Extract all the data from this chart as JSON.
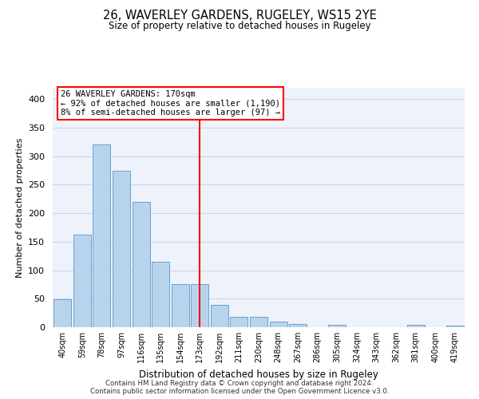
{
  "title": "26, WAVERLEY GARDENS, RUGELEY, WS15 2YE",
  "subtitle": "Size of property relative to detached houses in Rugeley",
  "xlabel": "Distribution of detached houses by size in Rugeley",
  "ylabel": "Number of detached properties",
  "bin_labels": [
    "40sqm",
    "59sqm",
    "78sqm",
    "97sqm",
    "116sqm",
    "135sqm",
    "154sqm",
    "173sqm",
    "192sqm",
    "211sqm",
    "230sqm",
    "248sqm",
    "267sqm",
    "286sqm",
    "305sqm",
    "324sqm",
    "343sqm",
    "362sqm",
    "381sqm",
    "400sqm",
    "419sqm"
  ],
  "bar_heights": [
    49,
    163,
    320,
    275,
    220,
    115,
    75,
    75,
    39,
    18,
    18,
    10,
    6,
    0,
    4,
    0,
    0,
    0,
    4,
    0,
    3
  ],
  "bar_color": "#b8d4ec",
  "bar_edge_color": "#6aa0cc",
  "ylim": [
    0,
    420
  ],
  "yticks": [
    0,
    50,
    100,
    150,
    200,
    250,
    300,
    350,
    400
  ],
  "red_line_index": 7,
  "annotation_title": "26 WAVERLEY GARDENS: 170sqm",
  "annotation_line1": "← 92% of detached houses are smaller (1,190)",
  "annotation_line2": "8% of semi-detached houses are larger (97) →",
  "footer_line1": "Contains HM Land Registry data © Crown copyright and database right 2024.",
  "footer_line2": "Contains public sector information licensed under the Open Government Licence v3.0.",
  "bg_color": "#eef2fb",
  "grid_color": "#cdd5ee"
}
